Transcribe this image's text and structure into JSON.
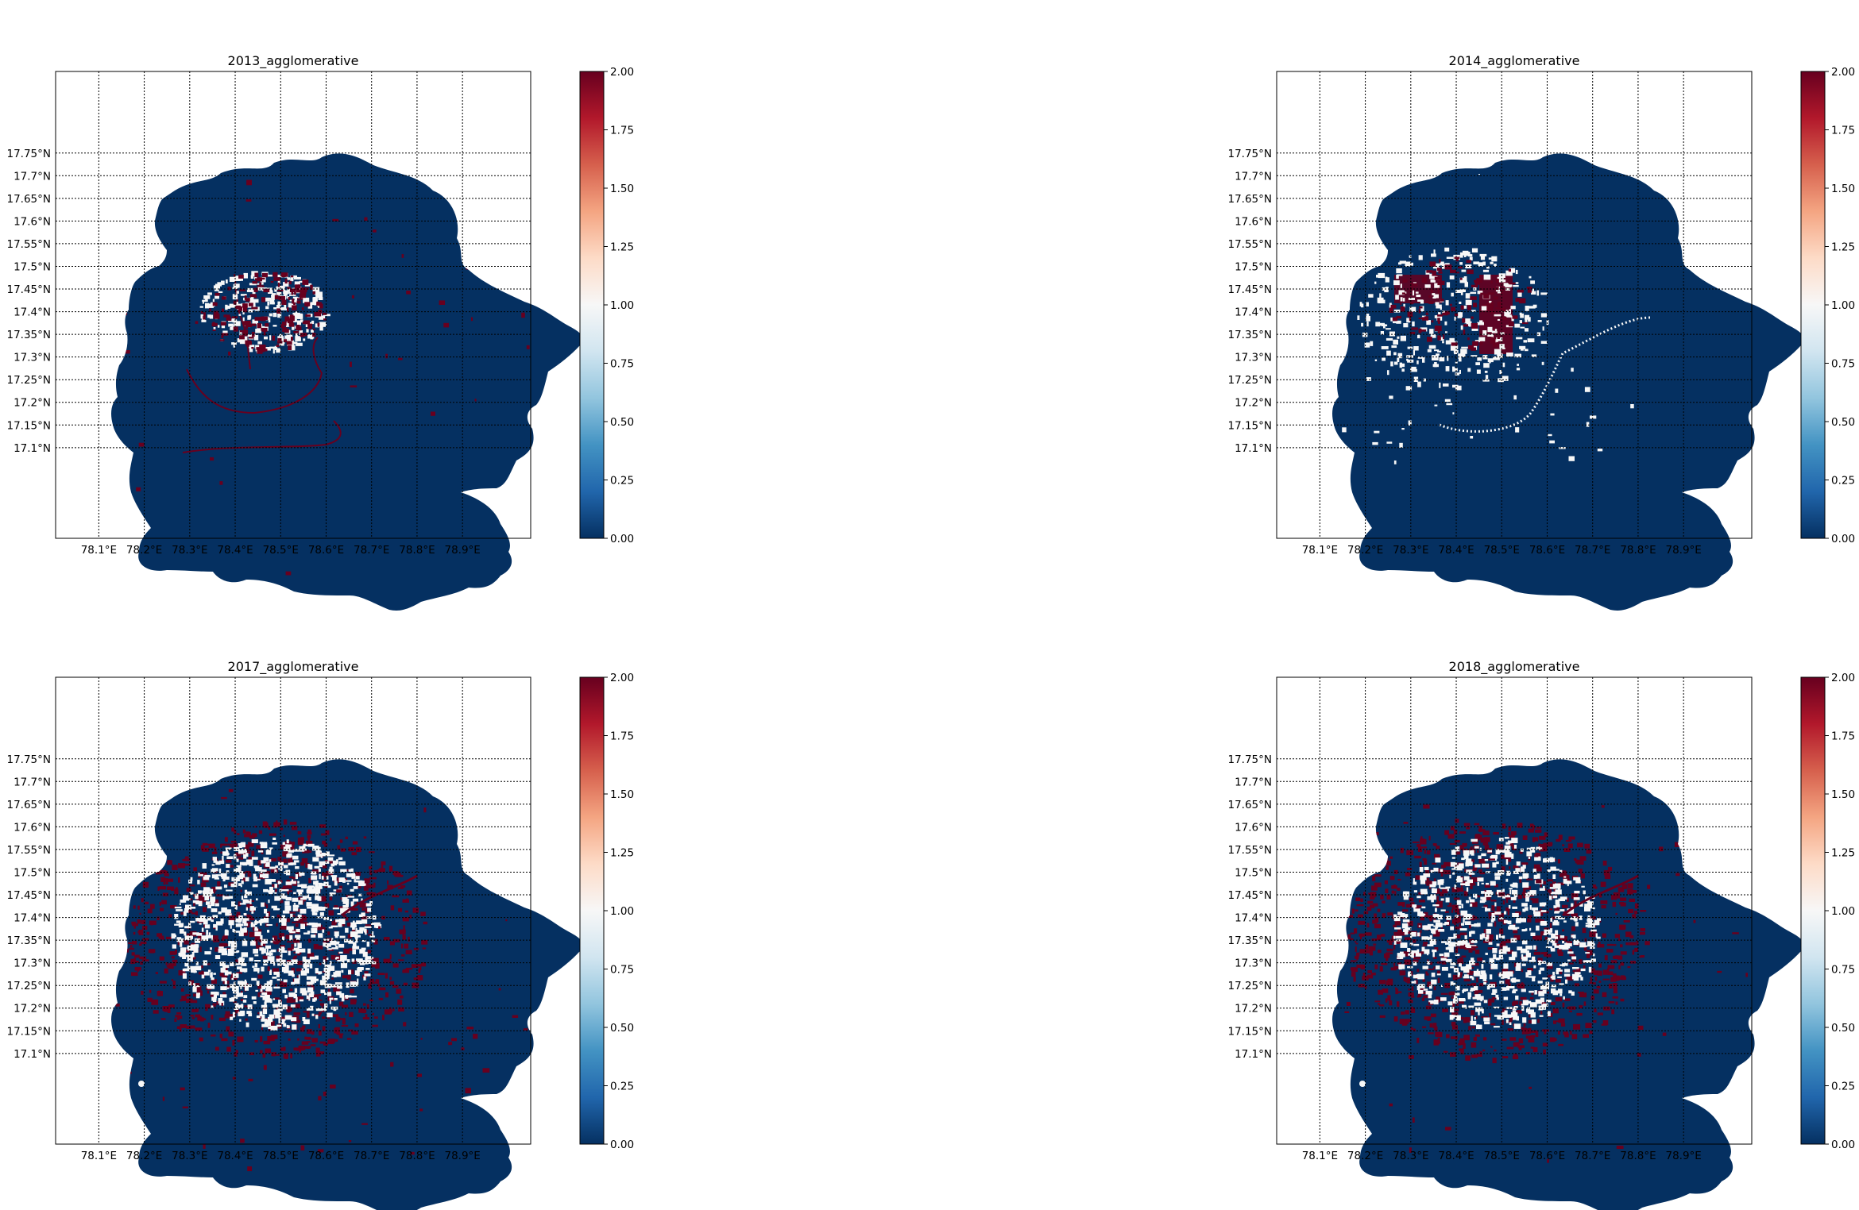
{
  "figure": {
    "panels": [
      {
        "title": "2013_agglomerative",
        "pattern": "2013"
      },
      {
        "title": "2014_agglomerative",
        "pattern": "2014"
      },
      {
        "title": "2017_agglomerative",
        "pattern": "2017"
      },
      {
        "title": "2018_agglomerative",
        "pattern": "2018"
      }
    ],
    "lat_ticks": [
      "17.75°N",
      "17.7°N",
      "17.65°N",
      "17.6°N",
      "17.55°N",
      "17.5°N",
      "17.45°N",
      "17.4°N",
      "17.35°N",
      "17.3°N",
      "17.25°N",
      "17.2°N",
      "17.15°N",
      "17.1°N"
    ],
    "lat_values": [
      17.75,
      17.7,
      17.65,
      17.6,
      17.55,
      17.5,
      17.45,
      17.4,
      17.35,
      17.3,
      17.25,
      17.2,
      17.15,
      17.1
    ],
    "lon_ticks": [
      "78.1°E",
      "78.2°E",
      "78.3°E",
      "78.4°E",
      "78.5°E",
      "78.6°E",
      "78.7°E",
      "78.8°E",
      "78.9°E"
    ],
    "lon_values": [
      78.1,
      78.2,
      78.3,
      78.4,
      78.5,
      78.6,
      78.7,
      78.8,
      78.9
    ],
    "lon_range": [
      78.005,
      79.05
    ],
    "lat_range": [
      16.9,
      17.93
    ],
    "colorbar": {
      "ticks": [
        "2.00",
        "1.75",
        "1.50",
        "1.25",
        "1.00",
        "0.75",
        "0.50",
        "0.25",
        "0.00"
      ],
      "min": 0,
      "max": 2,
      "colormap": "RdBu_r",
      "colors": [
        "#67001f",
        "#b2182b",
        "#d6604d",
        "#f4a582",
        "#fddbc7",
        "#f7f7f7",
        "#d1e5f0",
        "#92c5de",
        "#4393c3",
        "#2166ac",
        "#053061"
      ]
    },
    "class_colors": {
      "0": "#053061",
      "1": "#f7f7f7",
      "2": "#67001f"
    }
  }
}
